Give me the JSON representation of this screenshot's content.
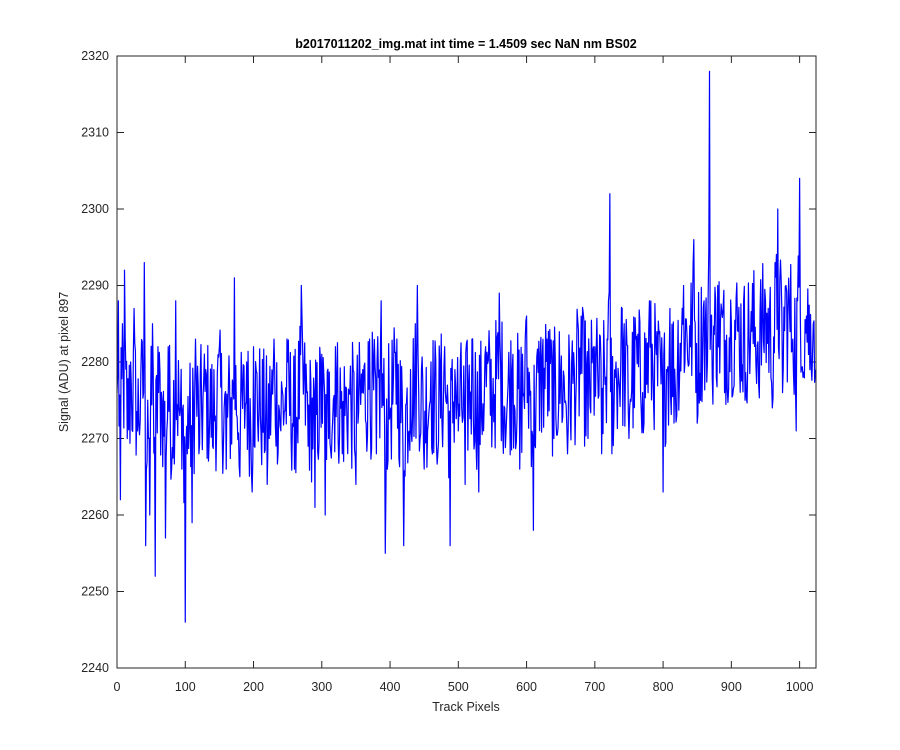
{
  "chart_data": {
    "type": "line",
    "title": "b2017011202_img.mat int time = 1.4509 sec  NaN nm BS02",
    "xlabel": "Track Pixels",
    "ylabel": "Signal (ADU) at pixel 897",
    "xlim": [
      0,
      1024
    ],
    "ylim": [
      2240,
      2320
    ],
    "xticks": [
      0,
      100,
      200,
      300,
      400,
      500,
      600,
      700,
      800,
      900,
      1000
    ],
    "yticks": [
      2240,
      2250,
      2260,
      2270,
      2280,
      2290,
      2300,
      2310,
      2320
    ],
    "grid": false,
    "legend": "none",
    "line_color": "#0000ff",
    "series": [
      {
        "x_start": 0,
        "x_step": 1,
        "note_points": "anchor samples; intermediate samples follow a noisy trace between them",
        "anchors": [
          [
            0,
            2276
          ],
          [
            2,
            2288
          ],
          [
            5,
            2262
          ],
          [
            8,
            2285
          ],
          [
            11,
            2292
          ],
          [
            15,
            2270
          ],
          [
            20,
            2280
          ],
          [
            25,
            2287
          ],
          [
            30,
            2271
          ],
          [
            35,
            2279
          ],
          [
            40,
            2293
          ],
          [
            42,
            2256
          ],
          [
            45,
            2275
          ],
          [
            48,
            2260
          ],
          [
            52,
            2285
          ],
          [
            56,
            2252
          ],
          [
            60,
            2282
          ],
          [
            66,
            2275
          ],
          [
            71,
            2257
          ],
          [
            75,
            2282
          ],
          [
            80,
            2266
          ],
          [
            86,
            2288
          ],
          [
            92,
            2273
          ],
          [
            95,
            2266
          ],
          [
            100,
            2246
          ],
          [
            103,
            2268
          ],
          [
            110,
            2259
          ],
          [
            115,
            2283
          ],
          [
            120,
            2268
          ],
          [
            130,
            2279
          ],
          [
            140,
            2269
          ],
          [
            150,
            2282
          ],
          [
            160,
            2266
          ],
          [
            170,
            2277
          ],
          [
            172,
            2291
          ],
          [
            180,
            2265
          ],
          [
            190,
            2280
          ],
          [
            198,
            2263
          ],
          [
            200,
            2282
          ],
          [
            210,
            2273
          ],
          [
            220,
            2264
          ],
          [
            230,
            2283
          ],
          [
            240,
            2271
          ],
          [
            250,
            2280
          ],
          [
            260,
            2266
          ],
          [
            270,
            2290
          ],
          [
            280,
            2269
          ],
          [
            290,
            2261
          ],
          [
            300,
            2281
          ],
          [
            305,
            2260
          ],
          [
            310,
            2270
          ],
          [
            320,
            2282
          ],
          [
            330,
            2268
          ],
          [
            340,
            2276
          ],
          [
            350,
            2264
          ],
          [
            360,
            2279
          ],
          [
            370,
            2283
          ],
          [
            380,
            2268
          ],
          [
            387,
            2288
          ],
          [
            393,
            2255
          ],
          [
            400,
            2273
          ],
          [
            410,
            2283
          ],
          [
            420,
            2256
          ],
          [
            430,
            2279
          ],
          [
            440,
            2290
          ],
          [
            450,
            2266
          ],
          [
            460,
            2280
          ],
          [
            470,
            2268
          ],
          [
            480,
            2282
          ],
          [
            488,
            2256
          ],
          [
            495,
            2279
          ],
          [
            500,
            2271
          ],
          [
            510,
            2264
          ],
          [
            520,
            2283
          ],
          [
            530,
            2263
          ],
          [
            540,
            2282
          ],
          [
            550,
            2274
          ],
          [
            560,
            2289
          ],
          [
            570,
            2271
          ],
          [
            580,
            2281
          ],
          [
            590,
            2266
          ],
          [
            600,
            2286
          ],
          [
            610,
            2258
          ],
          [
            620,
            2281
          ],
          [
            630,
            2283
          ],
          [
            640,
            2270
          ],
          [
            650,
            2278
          ],
          [
            660,
            2268
          ],
          [
            670,
            2279
          ],
          [
            680,
            2286
          ],
          [
            690,
            2270
          ],
          [
            700,
            2282
          ],
          [
            710,
            2268
          ],
          [
            718,
            2283
          ],
          [
            722,
            2302
          ],
          [
            725,
            2268
          ],
          [
            730,
            2278
          ],
          [
            740,
            2287
          ],
          [
            750,
            2270
          ],
          [
            760,
            2283
          ],
          [
            770,
            2276
          ],
          [
            780,
            2288
          ],
          [
            790,
            2281
          ],
          [
            800,
            2263
          ],
          [
            805,
            2279
          ],
          [
            810,
            2287
          ],
          [
            820,
            2273
          ],
          [
            830,
            2290
          ],
          [
            840,
            2282
          ],
          [
            845,
            2296
          ],
          [
            850,
            2272
          ],
          [
            860,
            2288
          ],
          [
            865,
            2280
          ],
          [
            868,
            2318
          ],
          [
            872,
            2278
          ],
          [
            880,
            2290
          ],
          [
            890,
            2276
          ],
          [
            900,
            2285
          ],
          [
            910,
            2284
          ],
          [
            920,
            2275
          ],
          [
            930,
            2284
          ],
          [
            940,
            2277
          ],
          [
            950,
            2288
          ],
          [
            960,
            2274
          ],
          [
            968,
            2300
          ],
          [
            975,
            2276
          ],
          [
            980,
            2290
          ],
          [
            990,
            2283
          ],
          [
            995,
            2271
          ],
          [
            1000,
            2304
          ],
          [
            1005,
            2278
          ],
          [
            1010,
            2286
          ],
          [
            1015,
            2279
          ],
          [
            1020,
            2285
          ],
          [
            1023,
            2279
          ]
        ]
      }
    ]
  }
}
